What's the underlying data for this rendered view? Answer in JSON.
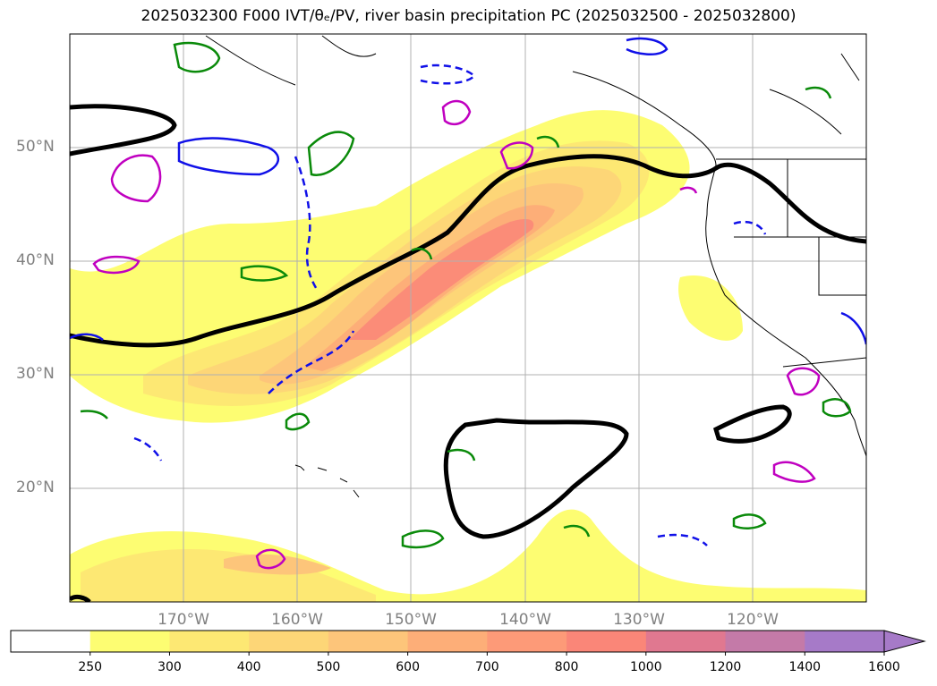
{
  "title": "2025032300 F000 IVT/θₑ/PV, river basin precipitation PC (2025032500 - 2025032800)",
  "lat_labels": [
    "50°N",
    "40°N",
    "30°N",
    "20°N"
  ],
  "lon_labels": [
    "170°W",
    "160°W",
    "150°W",
    "140°W",
    "130°W",
    "120°W"
  ],
  "colorbar": {
    "levels": [
      "250",
      "300",
      "400",
      "500",
      "600",
      "700",
      "800",
      "1000",
      "1200",
      "1400",
      "1600"
    ],
    "colors": [
      "#ffffff",
      "#fdfd72",
      "#fde873",
      "#fdd677",
      "#fdc57a",
      "#fdae78",
      "#fd9a78",
      "#fa8678",
      "#e07890",
      "#c47aa8",
      "#a67ac8"
    ]
  },
  "map_data": {
    "projection": "PlateCarree",
    "lon_range": [
      -180,
      -110
    ],
    "lat_range": [
      10,
      60
    ],
    "fields": {
      "filled": "IVT (kg m-1 s-1)",
      "black_contours": "theta_e",
      "blue_contours": "PV",
      "green_contours": "river basin precipitation PC",
      "magenta_contours": "PV"
    }
  }
}
